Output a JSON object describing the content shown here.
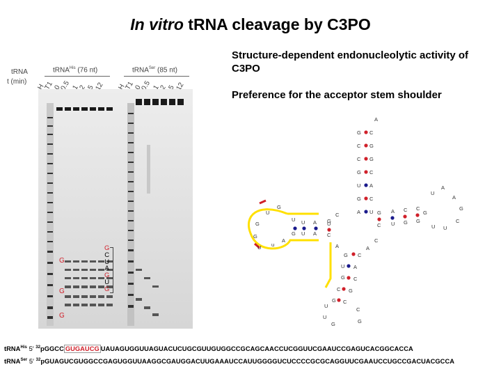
{
  "title": {
    "italic": "In vitro",
    "rest": " tRNA cleavage by C3PO"
  },
  "bullets": [
    "Structure-dependent endonucleolytic activity of C3PO",
    "Preference for the acceptor stem shoulder"
  ],
  "gel": {
    "row_label_1": "tRNA",
    "row_label_2": "t (min)",
    "group1": "tRNA",
    "group1_sup": "His",
    "group1_size": " (76 nt)",
    "group2": "tRNA",
    "group2_sup": "Ser",
    "group2_size": " (85 nt)",
    "lanes1": [
      "H",
      "T1",
      "0",
      "0.5",
      "1",
      "2",
      "5",
      "12"
    ],
    "lanes2": [
      "H",
      "T1",
      "0",
      "0.5",
      "1",
      "2",
      "5",
      "12"
    ],
    "g_markers": [
      "G",
      "G",
      "G"
    ],
    "cut_seq": [
      "G",
      "C",
      "U",
      "A",
      "G",
      "U",
      "G"
    ]
  },
  "sequences": {
    "his_name": "tRNA",
    "his_sup": "His",
    "his_prefix": " 5′ ",
    "his_label32": "32",
    "his_p": "pGGCC",
    "his_box": "GUGAUCG",
    "his_rest": "UAUAGUGGUUAGUACUCUGCGUUGUGGCCGCAGCAACCUCGGUUCGAAUCCGAGUCACGGCACCA",
    "ser_name": "tRNA",
    "ser_sup": "Ser",
    "ser_prefix": " 5′ ",
    "ser_label32": "32",
    "ser_seq": "pGUAGUCGUGGCCGAGUGGUUAAGGCGAUGGACUUGAAAUCCAUUGGGGUCUCCCCGCGCAGGUUCGAAUCCUGCCGACUACGCCA"
  },
  "colors": {
    "highlight": "#ffe000",
    "cut_red": "#d0202a",
    "pair_blue": "#1a1a8c"
  }
}
